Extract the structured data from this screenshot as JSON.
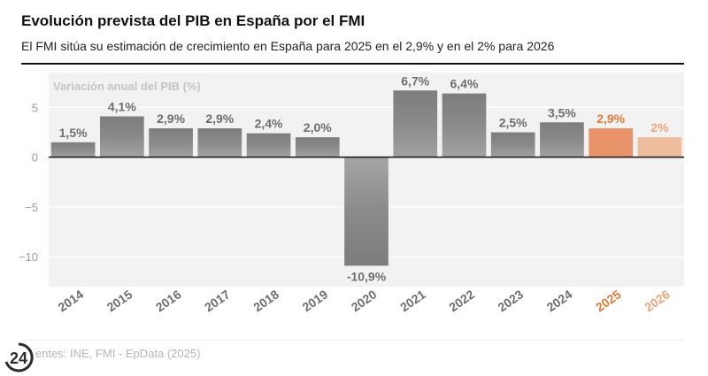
{
  "header": {
    "title": "Evolución prevista del PIB en España por el FMI",
    "subtitle": "El FMI sitúa su estimación de crecimiento en España para 2025 en el 2,9% y en el 2% para 2026"
  },
  "footer": {
    "source": "entes: INE, FMI - EpData (2025)",
    "logo_text": "24"
  },
  "colors": {
    "actual": "#8c8c8c",
    "forecast_2025": "#e8936a",
    "forecast_2026": "#f0bc9e",
    "forecast_text": "#e07b39"
  },
  "chart_data": {
    "type": "bar",
    "ylabel": "Variación anual del PIB (%)",
    "categories": [
      "2014",
      "2015",
      "2016",
      "2017",
      "2018",
      "2019",
      "2020",
      "2021",
      "2022",
      "2023",
      "2024",
      "2025",
      "2026"
    ],
    "values": [
      1.5,
      4.1,
      2.9,
      2.9,
      2.4,
      2.0,
      -10.9,
      6.7,
      6.4,
      2.5,
      3.5,
      2.9,
      2.0
    ],
    "labels": [
      "1,5%",
      "4,1%",
      "2,9%",
      "2,9%",
      "2,4%",
      "2,0%",
      "-10,9%",
      "6,7%",
      "6,4%",
      "2,5%",
      "3,5%",
      "2,9%",
      "2%"
    ],
    "forecast": [
      false,
      false,
      false,
      false,
      false,
      false,
      false,
      false,
      false,
      false,
      false,
      true,
      true
    ],
    "yticks": [
      5,
      0,
      -5,
      -10
    ],
    "ytick_labels": [
      "5",
      "0",
      "−5",
      "−10"
    ],
    "ylim": [
      -13,
      8.5
    ],
    "grid": true
  }
}
